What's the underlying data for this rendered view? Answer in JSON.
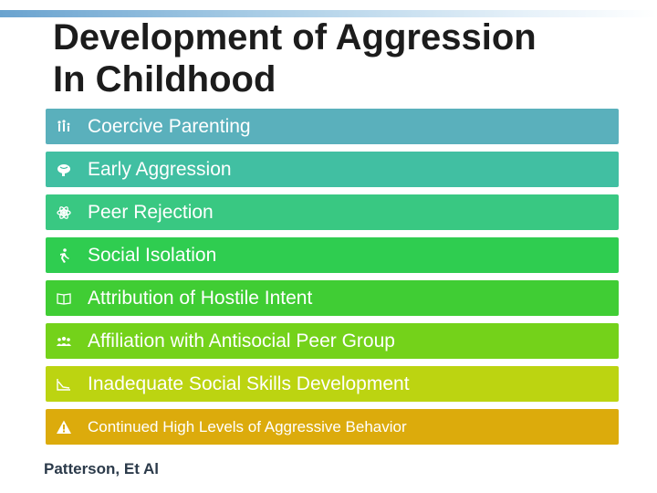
{
  "title": {
    "line1": "Development of Aggression",
    "line2": "In Childhood"
  },
  "items": [
    {
      "label": "Coercive Parenting",
      "icon": "family-icon",
      "color": "#5ab0bc"
    },
    {
      "label": "Early Aggression",
      "icon": "brain-icon",
      "color": "#41bfa2"
    },
    {
      "label": "Peer Rejection",
      "icon": "atom-icon",
      "color": "#39c882"
    },
    {
      "label": "Social Isolation",
      "icon": "running-person-icon",
      "color": "#2fcd50"
    },
    {
      "label": "Attribution of Hostile Intent",
      "icon": "open-book-icon",
      "color": "#40cd34"
    },
    {
      "label": "Affiliation with Antisocial Peer Group",
      "icon": "group-icon",
      "color": "#74d21a"
    },
    {
      "label": "Inadequate Social Skills Development",
      "icon": "line-chart-icon",
      "color": "#bcd411"
    },
    {
      "label": "Continued High Levels of Aggressive Behavior",
      "icon": "warning-icon",
      "color": "#dcab0c"
    }
  ],
  "footer": "Patterson, Et Al"
}
